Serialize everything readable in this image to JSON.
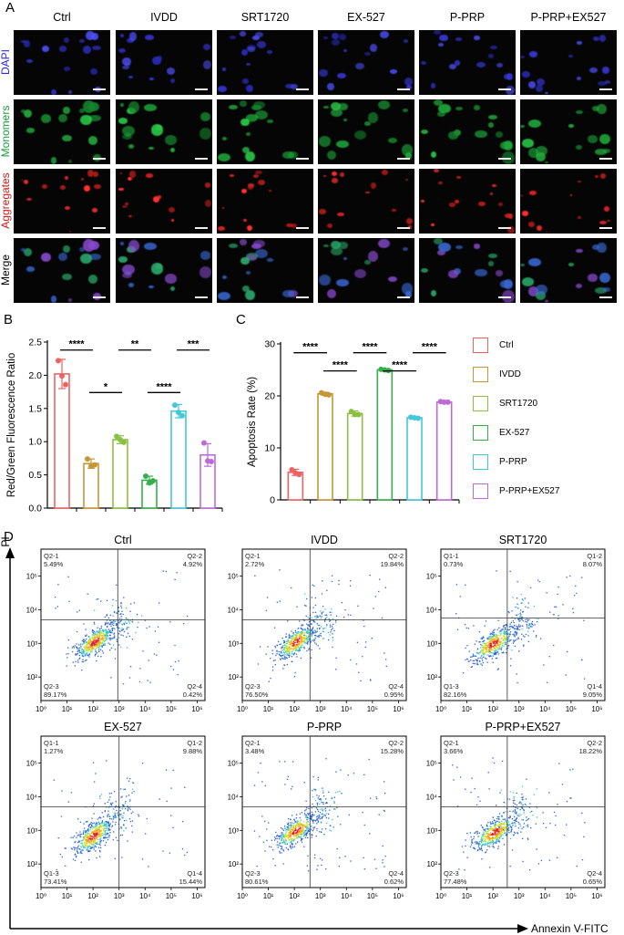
{
  "panel_labels": {
    "a": "A",
    "b": "B",
    "c": "C",
    "d": "D"
  },
  "microscopy": {
    "columns": [
      "Ctrl",
      "IVDD",
      "SRT1720",
      "EX-527",
      "P-PRP",
      "P-PRP+EX527"
    ],
    "rows": [
      {
        "label": "DAPI",
        "color": "#2a2ad8",
        "kind": "dapi"
      },
      {
        "label": "Monomers",
        "color": "#1a9a3a",
        "kind": "mono"
      },
      {
        "label": "Aggregates",
        "color": "#d01818",
        "kind": "agg"
      },
      {
        "label": "Merge",
        "color": "#000000",
        "kind": "merge"
      }
    ]
  },
  "chart_data": [
    {
      "type": "bar",
      "id": "B",
      "ylabel": "Red/Green Fluorescence Ratio",
      "categories": [
        "Ctrl",
        "IVDD",
        "SRT1720",
        "EX-527",
        "P-PRP",
        "P-PRP+EX527"
      ],
      "values": [
        2.02,
        0.67,
        1.03,
        0.42,
        1.46,
        0.8
      ],
      "errors": [
        0.22,
        0.07,
        0.06,
        0.06,
        0.1,
        0.17
      ],
      "points": [
        [
          2.22,
          1.99,
          1.86
        ],
        [
          0.74,
          0.63,
          0.65
        ],
        [
          1.08,
          1.03,
          0.99
        ],
        [
          0.48,
          0.38,
          0.41
        ],
        [
          1.55,
          1.44,
          1.39
        ],
        [
          0.98,
          0.71,
          0.7
        ]
      ],
      "ylim": [
        0,
        2.5
      ],
      "yticks": [
        0.0,
        0.5,
        1.0,
        1.5,
        2.0,
        2.5
      ],
      "ytick_labels": [
        "0.0",
        "0.5",
        "1.0",
        "1.5",
        "2.0",
        "2.5"
      ],
      "significance": [
        {
          "from": 0,
          "to": 1,
          "value": 2.38,
          "label": "****"
        },
        {
          "from": 1,
          "to": 2,
          "value": 1.74,
          "label": "*"
        },
        {
          "from": 2,
          "to": 3,
          "value": 2.38,
          "label": "**"
        },
        {
          "from": 3,
          "to": 4,
          "value": 1.74,
          "label": "****"
        },
        {
          "from": 4,
          "to": 5,
          "value": 2.38,
          "label": "***"
        }
      ]
    },
    {
      "type": "bar",
      "id": "C",
      "ylabel": "Apoptosis Rate  (%)",
      "categories": [
        "Ctrl",
        "IVDD",
        "SRT1720",
        "EX-527",
        "P-PRP",
        "P-PRP+EX527"
      ],
      "values": [
        5.3,
        20.4,
        16.6,
        25.0,
        15.8,
        18.8
      ],
      "errors": [
        0.6,
        0.3,
        0.5,
        0.15,
        0.15,
        0.15
      ],
      "points": [
        [
          5.8,
          5.2,
          4.9
        ],
        [
          20.6,
          20.3,
          20.2
        ],
        [
          17.0,
          16.4,
          16.4
        ],
        [
          25.1,
          25.0,
          24.9
        ],
        [
          15.9,
          15.8,
          15.7
        ],
        [
          18.9,
          18.8,
          18.8
        ]
      ],
      "ylim": [
        0,
        30
      ],
      "yticks": [
        0,
        10,
        20,
        30
      ],
      "ytick_labels": [
        "0",
        "10",
        "20",
        "30"
      ],
      "significance": [
        {
          "from": 0,
          "to": 1,
          "value": 28.3,
          "label": "****"
        },
        {
          "from": 1,
          "to": 2,
          "value": 24.8,
          "label": "****"
        },
        {
          "from": 2,
          "to": 3,
          "value": 28.3,
          "label": "****"
        },
        {
          "from": 3,
          "to": 4,
          "value": 24.8,
          "label": "****"
        },
        {
          "from": 4,
          "to": 5,
          "value": 28.3,
          "label": "****"
        }
      ]
    }
  ],
  "legend": [
    {
      "label": "Ctrl",
      "color": "#ef6262"
    },
    {
      "label": "IVDD",
      "color": "#c89635"
    },
    {
      "label": "SRT1720",
      "color": "#8cc043"
    },
    {
      "label": "EX-527",
      "color": "#33b04a"
    },
    {
      "label": "P-PRP",
      "color": "#42c8d8"
    },
    {
      "label": "P-PRP+EX527",
      "color": "#bc6ad8"
    }
  ],
  "flow": {
    "y_axis_label": "PI",
    "x_axis_label": "Annexin V-FITC",
    "x_ticks": [
      "10⁰",
      "10¹",
      "10²",
      "10³",
      "10⁴",
      "10⁵",
      "10⁶"
    ],
    "y_ticks": [
      "10²",
      "10³",
      "10⁴",
      "10⁵"
    ],
    "plots": [
      {
        "title": "Ctrl",
        "q_tl": "Q2-1",
        "q_tl_pct": "5.49%",
        "q_tr": "Q2-2",
        "q_tr_pct": "4.92%",
        "q_bl": "Q2-3",
        "q_bl_pct": "89.17%",
        "q_br": "Q2-4",
        "q_br_pct": "0.42%",
        "gate_x": 2.95,
        "gate_y": 3.7
      },
      {
        "title": "IVDD",
        "q_tl": "Q2-1",
        "q_tl_pct": "2.72%",
        "q_tr": "Q2-2",
        "q_tr_pct": "19.84%",
        "q_bl": "Q2-3",
        "q_bl_pct": "76.50%",
        "q_br": "Q2-4",
        "q_br_pct": "0.95%",
        "gate_x": 2.6,
        "gate_y": 3.7
      },
      {
        "title": "SRT1720",
        "q_tl": "Q1-1",
        "q_tl_pct": "0.73%",
        "q_tr": "Q1-2",
        "q_tr_pct": "8.07%",
        "q_bl": "Q1-3",
        "q_bl_pct": "82.16%",
        "q_br": "Q1-4",
        "q_br_pct": "9.05%",
        "gate_x": 2.55,
        "gate_y": 3.75
      },
      {
        "title": "EX-527",
        "q_tl": "Q1-1",
        "q_tl_pct": "1.27%",
        "q_tr": "Q1-2",
        "q_tr_pct": "9.88%",
        "q_bl": "Q1-3",
        "q_bl_pct": "73.41%",
        "q_br": "Q1-4",
        "q_br_pct": "15.44%",
        "gate_x": 3.0,
        "gate_y": 3.7
      },
      {
        "title": "P-PRP",
        "q_tl": "Q2-1",
        "q_tl_pct": "3.48%",
        "q_tr": "Q2-2",
        "q_tr_pct": "15.28%",
        "q_bl": "Q2-3",
        "q_bl_pct": "80.61%",
        "q_br": "Q2-4",
        "q_br_pct": "0.62%",
        "gate_x": 2.6,
        "gate_y": 3.7
      },
      {
        "title": "P-PRP+EX527",
        "q_tl": "Q2-1",
        "q_tl_pct": "3.66%",
        "q_tr": "Q2-2",
        "q_tr_pct": "18.22%",
        "q_bl": "Q2-3",
        "q_bl_pct": "77.48%",
        "q_br": "Q2-4",
        "q_br_pct": "0.65%",
        "gate_x": 2.55,
        "gate_y": 3.7
      }
    ]
  }
}
